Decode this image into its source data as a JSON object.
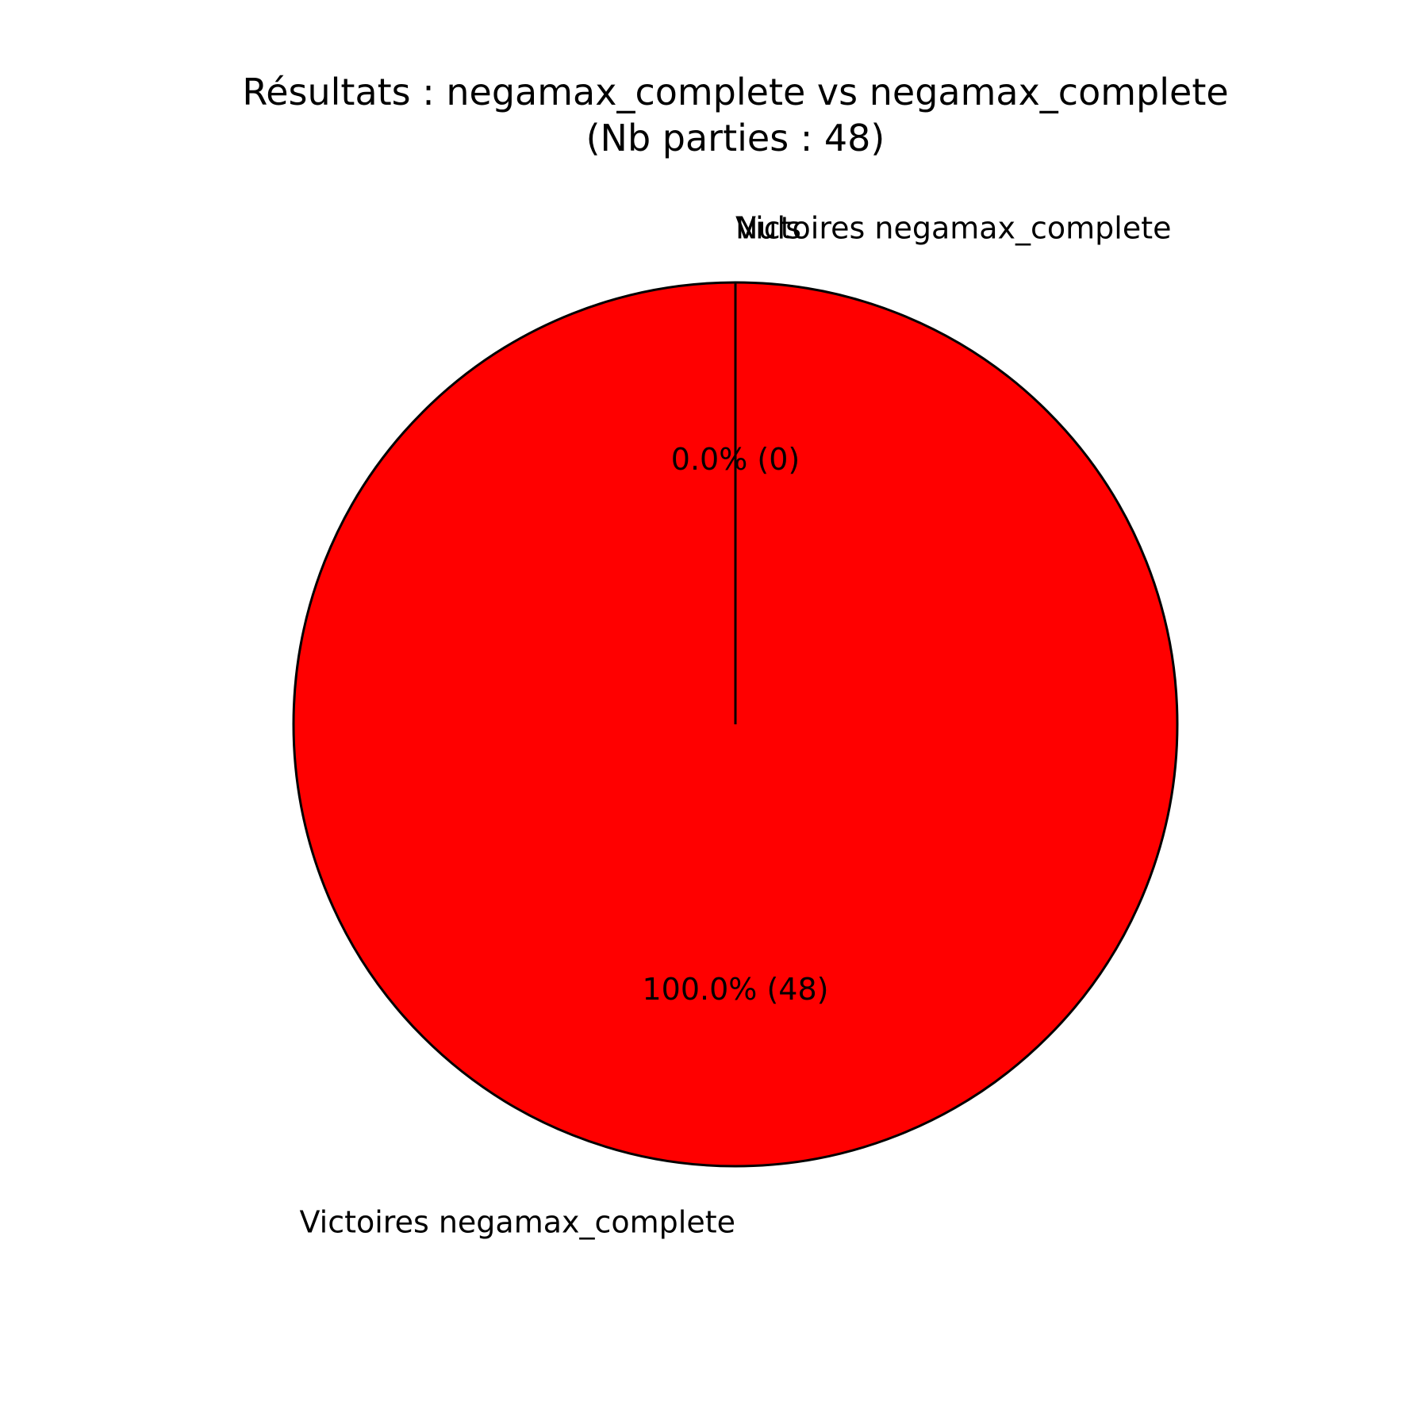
{
  "chart_data": {
    "type": "pie",
    "title": "Résultats : negamax_complete vs negamax_complete",
    "subtitle": "(Nb parties : 48)",
    "slices": [
      {
        "label": "Victoires negamax_complete",
        "value": 0,
        "autopct": "0.0% (0)",
        "color": "#0000ff"
      },
      {
        "label": "Nuls",
        "value": 0,
        "autopct": "",
        "color": "#808080"
      },
      {
        "label": "Victoires negamax_complete",
        "value": 48,
        "autopct": "100.0% (48)",
        "color": "#ff0000"
      }
    ],
    "start_angle_deg": 90,
    "edge_color": "#000000"
  }
}
